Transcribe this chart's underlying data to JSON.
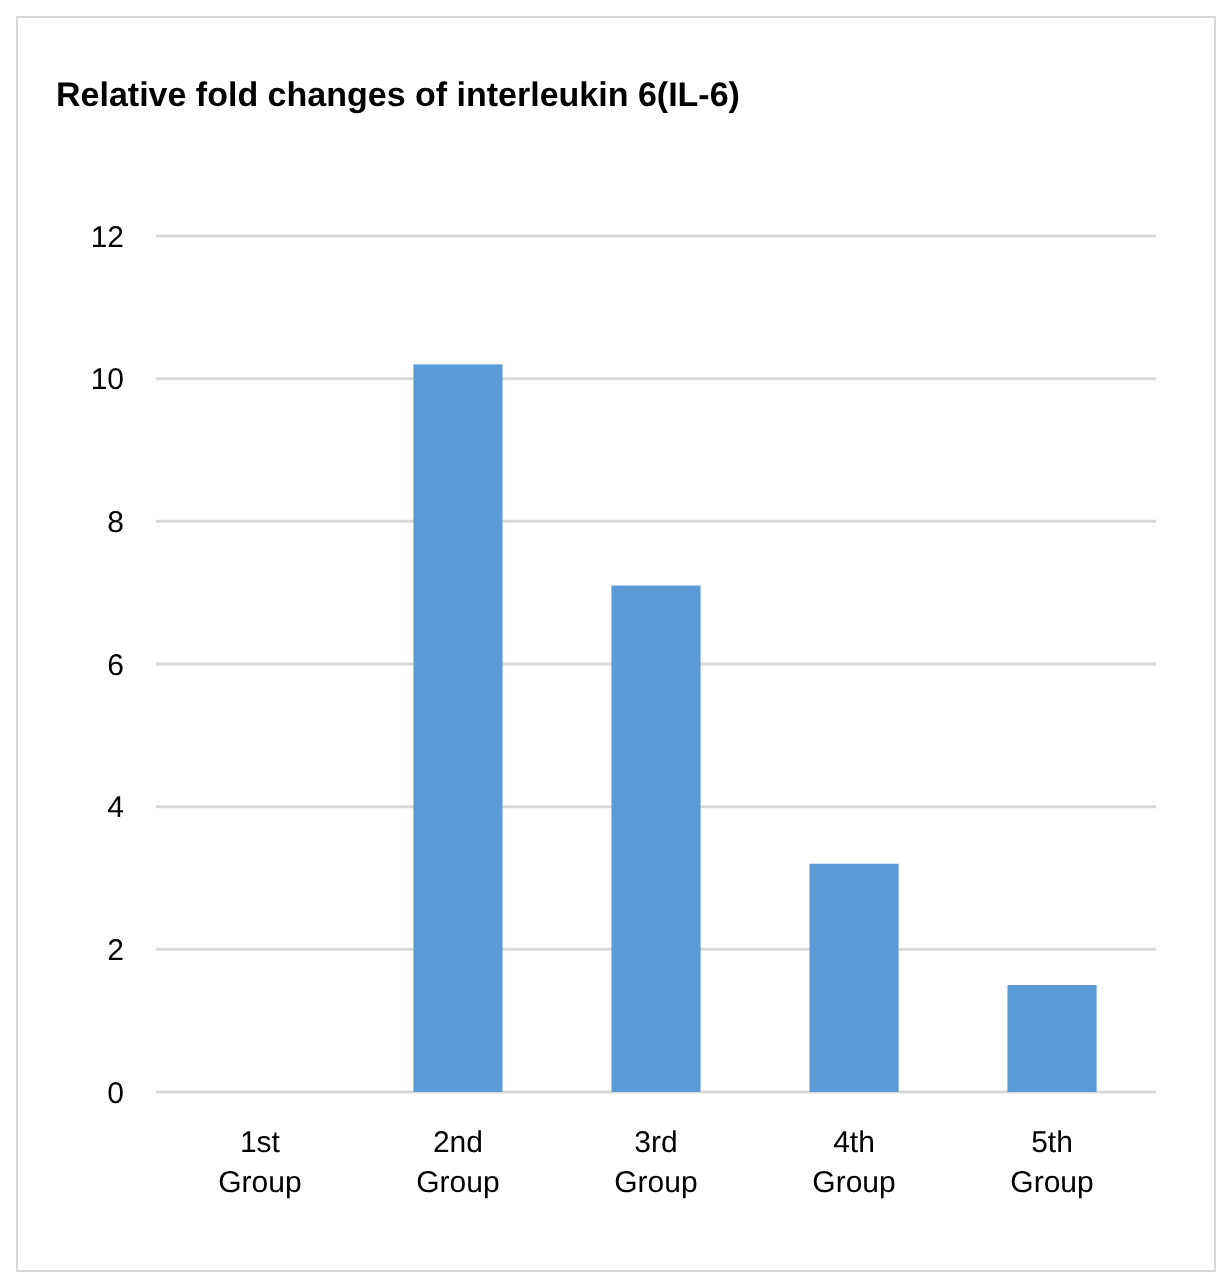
{
  "chart_data": {
    "type": "bar",
    "title": "Relative fold changes of interleukin 6(IL-6)",
    "categories": [
      "1st Group",
      "2nd Group",
      "3rd Group",
      "4th Group",
      "5th Group"
    ],
    "values": [
      0,
      10.2,
      7.1,
      3.2,
      1.5
    ],
    "color": "#5b9bd5",
    "ylim": [
      0,
      12
    ],
    "yticks": [
      0,
      2,
      4,
      6,
      8,
      10,
      12
    ],
    "grid": "y"
  }
}
